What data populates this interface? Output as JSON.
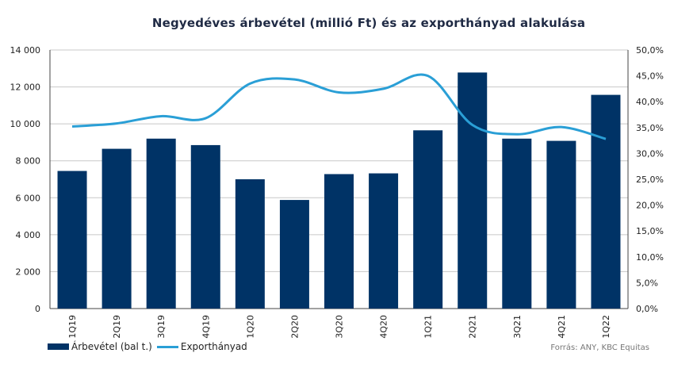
{
  "chart_data": {
    "type": "bar",
    "title": "Negyedéves árbevétel (millió Ft) és az exporthányad alakulása",
    "categories": [
      "1Q19",
      "2Q19",
      "3Q19",
      "4Q19",
      "1Q20",
      "2Q20",
      "3Q20",
      "4Q20",
      "1Q21",
      "2Q21",
      "3Q21",
      "4Q21",
      "1Q22"
    ],
    "series": [
      {
        "name": "Árbevétel (bal t.)",
        "type": "bar",
        "axis": "left",
        "color": "#003366",
        "values": [
          7450,
          8650,
          9200,
          8850,
          7000,
          5880,
          7280,
          7320,
          9650,
          12780,
          9200,
          9080,
          11570
        ]
      },
      {
        "name": "Exporthányad",
        "type": "line",
        "axis": "right",
        "color": "#2a9fd6",
        "values": [
          0.352,
          0.358,
          0.372,
          0.368,
          0.435,
          0.443,
          0.418,
          0.425,
          0.45,
          0.355,
          0.337,
          0.351,
          0.328
        ]
      }
    ],
    "y_left": {
      "min": 0,
      "max": 14000,
      "ticks": [
        "0",
        "2 000",
        "4 000",
        "6 000",
        "8 000",
        "10 000",
        "12 000",
        "14 000"
      ]
    },
    "y_right": {
      "min": 0,
      "max": 0.5,
      "ticks": [
        "0,0%",
        "5,0%",
        "10,0%",
        "15,0%",
        "20,0%",
        "25,0%",
        "30,0%",
        "35,0%",
        "40,0%",
        "45,0%",
        "50,0%"
      ]
    },
    "grid": true,
    "legend": "bottom-left"
  },
  "source": "Forrás: ANY, KBC Equitas"
}
